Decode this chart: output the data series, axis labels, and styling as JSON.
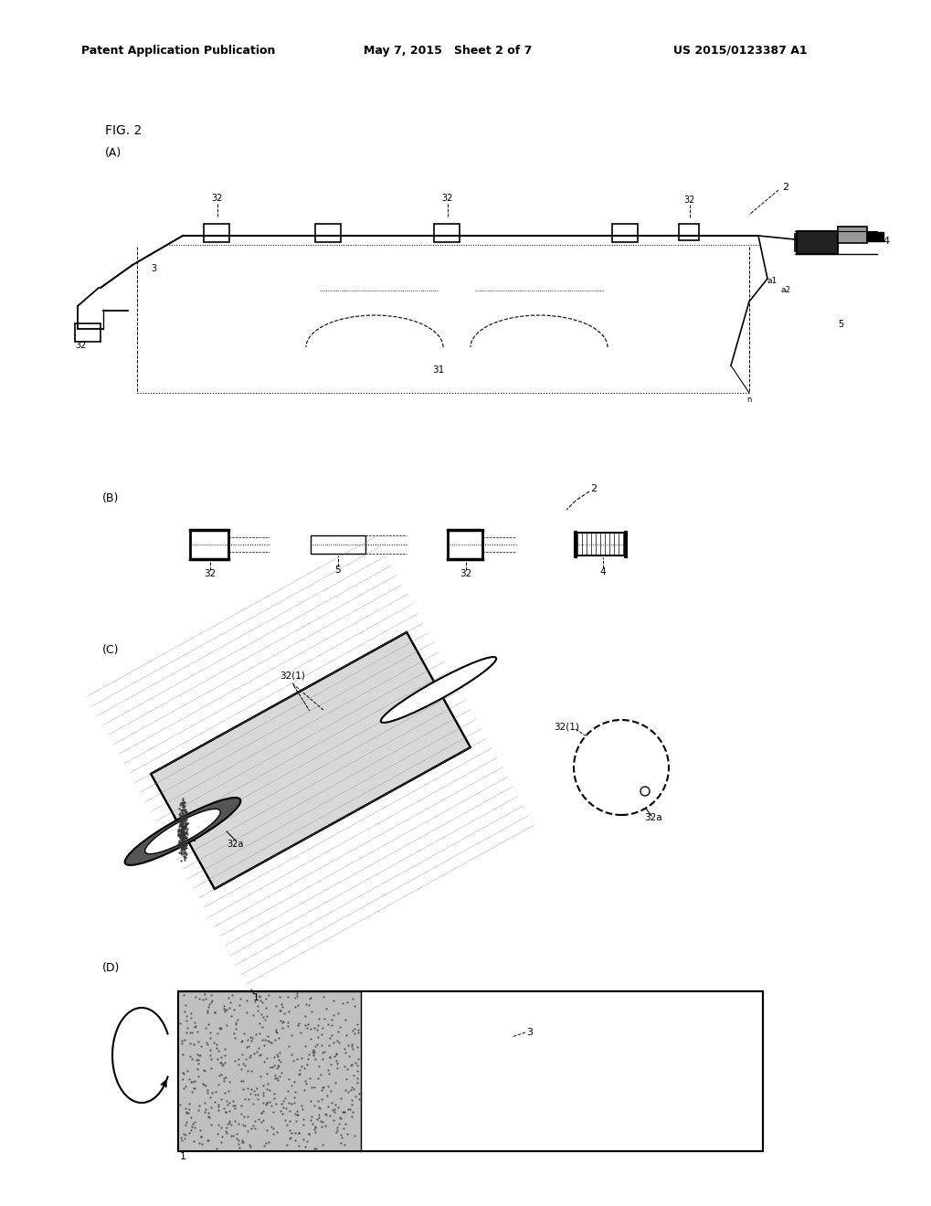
{
  "header_left": "Patent Application Publication",
  "header_mid": "May 7, 2015   Sheet 2 of 7",
  "header_right": "US 2015/0123387 A1",
  "fig_label": "FIG. 2",
  "background": "#ffffff",
  "line_color": "#000000",
  "gray_light": "#bbbbbb",
  "gray_dark": "#555555",
  "gray_med": "#888888"
}
